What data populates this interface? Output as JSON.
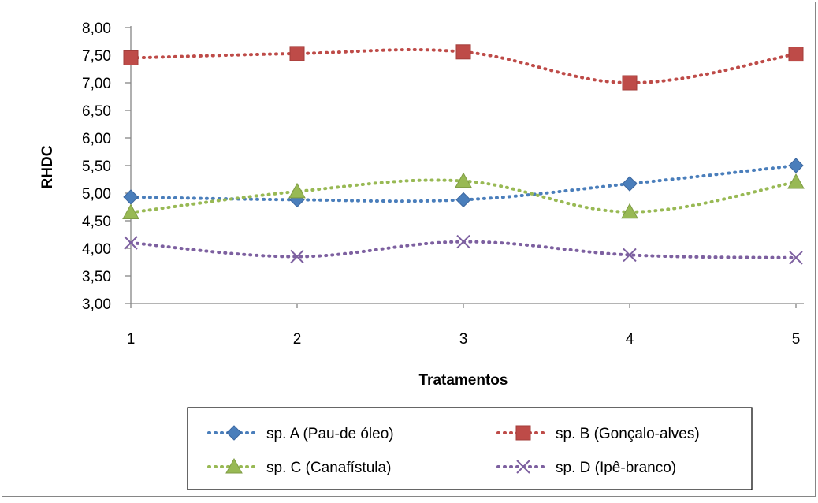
{
  "chart_data": {
    "type": "line",
    "title": "",
    "xlabel": "Tratamentos",
    "ylabel": "RHDC",
    "categories": [
      "1",
      "2",
      "3",
      "4",
      "5"
    ],
    "ylim": [
      3.0,
      8.0
    ],
    "yticks": [
      "3,00",
      "3,50",
      "4,00",
      "4,50",
      "5,00",
      "5,50",
      "6,00",
      "6,50",
      "7,00",
      "7,50",
      "8,00"
    ],
    "grid": false,
    "legend_position": "bottom",
    "line_style": "dotted, smoothed",
    "series": [
      {
        "name": "sp. A (Pau-de óleo)",
        "values": [
          4.93,
          4.88,
          4.88,
          5.17,
          5.5
        ],
        "color": "#4a7ebb",
        "marker": "diamond"
      },
      {
        "name": "sp. B (Gonçalo-alves)",
        "values": [
          7.45,
          7.53,
          7.56,
          7.0,
          7.52
        ],
        "color": "#be4b48",
        "marker": "square"
      },
      {
        "name": "sp. C (Canafístula)",
        "values": [
          4.65,
          5.03,
          5.22,
          4.66,
          5.2
        ],
        "color": "#98b954",
        "marker": "triangle"
      },
      {
        "name": "sp. D (Ipê-branco)",
        "values": [
          4.1,
          3.85,
          4.12,
          3.88,
          3.83
        ],
        "color": "#7d60a0",
        "marker": "x"
      }
    ]
  }
}
